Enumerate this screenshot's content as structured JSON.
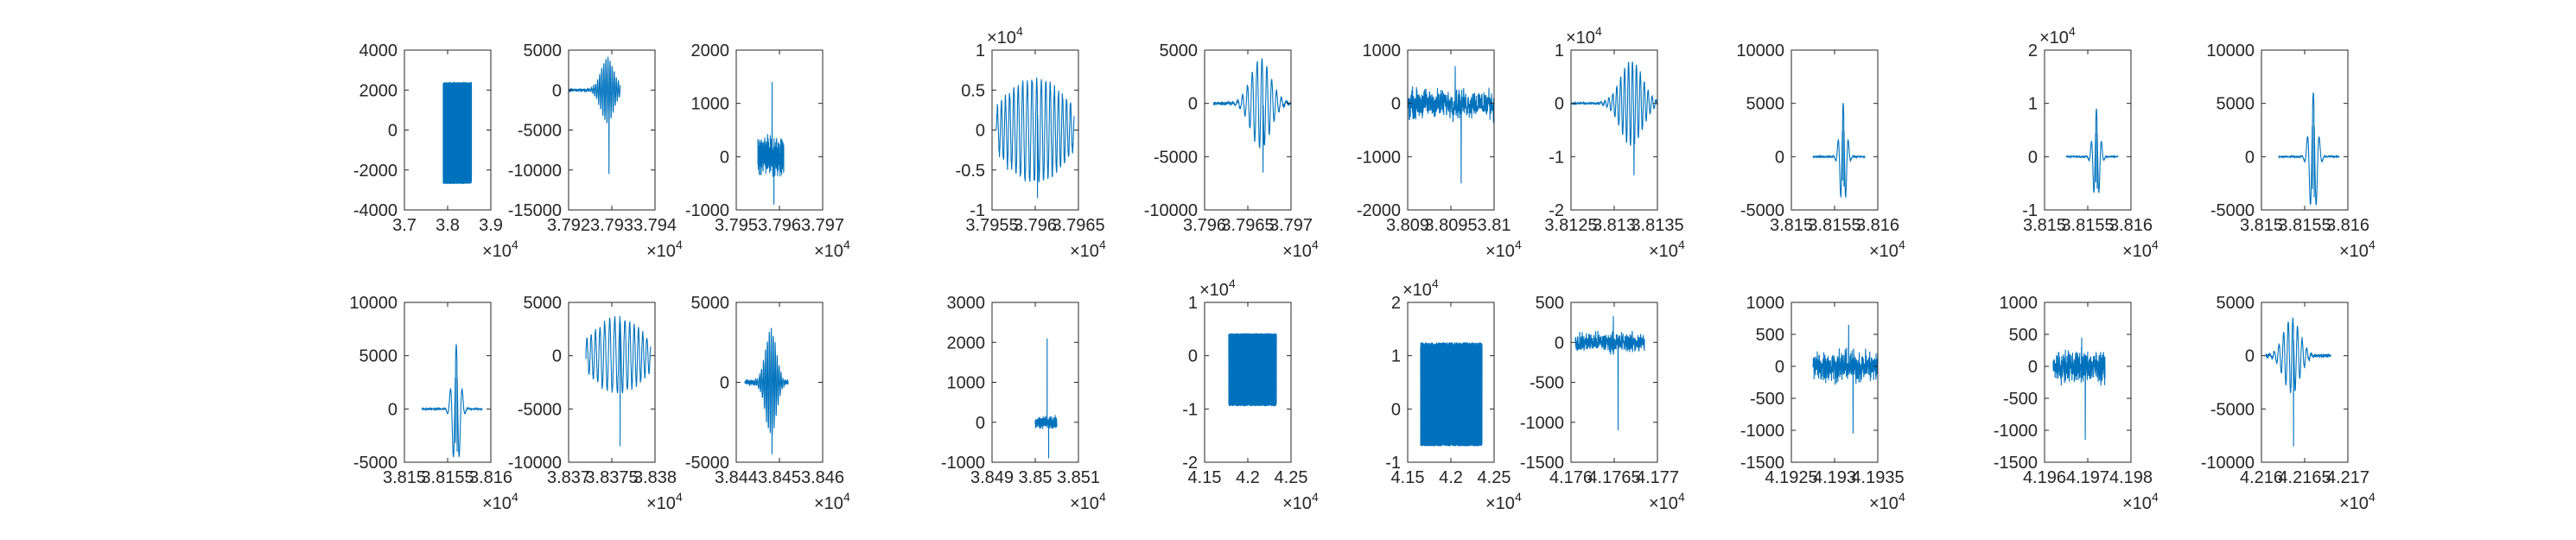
{
  "chart_data": [
    {
      "type": "line",
      "xlim": [
        37000,
        39000
      ],
      "ylim": [
        -4000,
        4000
      ],
      "xticks": [
        {
          "v": 37000,
          "t": "3.7"
        },
        {
          "v": 38000,
          "t": "3.8"
        },
        {
          "v": 39000,
          "t": "3.9"
        }
      ],
      "yticks": [
        {
          "v": -4000,
          "t": "-4000"
        },
        {
          "v": -2000,
          "t": "-2000"
        },
        {
          "v": 0,
          "t": "0"
        },
        {
          "v": 2000,
          "t": "2000"
        },
        {
          "v": 4000,
          "t": "4000"
        }
      ],
      "x_exponent": "4",
      "y_exponent": "",
      "signal": {
        "kind": "block",
        "x0": 37900,
        "x1": 38550,
        "amp": 2400,
        "low": -2700
      }
    },
    {
      "type": "line",
      "xlim": [
        37920,
        37940
      ],
      "ylim": [
        -15000,
        5000
      ],
      "xticks": [
        {
          "v": 37920,
          "t": "3.792"
        },
        {
          "v": 37930,
          "t": "3.793"
        },
        {
          "v": 37940,
          "t": "3.794"
        }
      ],
      "yticks": [
        {
          "v": -15000,
          "t": "-15000"
        },
        {
          "v": -10000,
          "t": "-10000"
        },
        {
          "v": -5000,
          "t": "-5000"
        },
        {
          "v": 0,
          "t": "0"
        },
        {
          "v": 5000,
          "t": "5000"
        }
      ],
      "x_exponent": "4",
      "y_exponent": "",
      "signal": {
        "kind": "burst",
        "x0": 37920,
        "x1": 37932,
        "peakX": 37929,
        "amp": 4000,
        "minV": -10500,
        "noise": 300,
        "osc": 25
      }
    },
    {
      "type": "line",
      "xlim": [
        37950,
        37970
      ],
      "ylim": [
        -1000,
        2000
      ],
      "xticks": [
        {
          "v": 37950,
          "t": "3.795"
        },
        {
          "v": 37960,
          "t": "3.796"
        },
        {
          "v": 37970,
          "t": "3.797"
        }
      ],
      "yticks": [
        {
          "v": -1000,
          "t": "-1000"
        },
        {
          "v": 0,
          "t": "0"
        },
        {
          "v": 1000,
          "t": "1000"
        },
        {
          "v": 2000,
          "t": "2000"
        }
      ],
      "x_exponent": "4",
      "y_exponent": "",
      "signal": {
        "kind": "noisy",
        "x0": 37955,
        "x1": 37961,
        "amp": 500,
        "spikeMax": 1400,
        "spikeMin": -900
      }
    },
    {
      "type": "line",
      "xlim": [
        37955,
        37965
      ],
      "ylim": [
        -10000,
        10000
      ],
      "xticks": [
        {
          "v": 37955,
          "t": "3.7955"
        },
        {
          "v": 37960,
          "t": "3.796"
        },
        {
          "v": 37965,
          "t": "3.7965"
        }
      ],
      "yticks": [
        {
          "v": -10000,
          "t": "-1"
        },
        {
          "v": -5000,
          "t": "-0.5"
        },
        {
          "v": 0,
          "t": "0"
        },
        {
          "v": 5000,
          "t": "0.5"
        },
        {
          "v": 10000,
          "t": "1"
        }
      ],
      "x_exponent": "4",
      "y_exponent": "4",
      "signal": {
        "kind": "wavy",
        "x0": 37955.5,
        "x1": 37964.5,
        "amp": 6500,
        "minV": -8500,
        "osc": 18
      }
    },
    {
      "type": "line",
      "xlim": [
        37960,
        37970
      ],
      "ylim": [
        -10000,
        5000
      ],
      "xticks": [
        {
          "v": 37960,
          "t": "3.796"
        },
        {
          "v": 37965,
          "t": "3.7965"
        },
        {
          "v": 37970,
          "t": "3.797"
        }
      ],
      "yticks": [
        {
          "v": -10000,
          "t": "-10000"
        },
        {
          "v": -5000,
          "t": "-5000"
        },
        {
          "v": 0,
          "t": "0"
        },
        {
          "v": 5000,
          "t": "5000"
        }
      ],
      "x_exponent": "4",
      "y_exponent": "",
      "signal": {
        "kind": "burst",
        "x0": 37961,
        "x1": 37970,
        "peakX": 37966.5,
        "amp": 4200,
        "minV": -6500,
        "noise": 250,
        "osc": 16
      }
    },
    {
      "type": "line",
      "xlim": [
        38090,
        38100
      ],
      "ylim": [
        -2000,
        1000
      ],
      "xticks": [
        {
          "v": 38090,
          "t": "3.809"
        },
        {
          "v": 38095,
          "t": "3.8095"
        },
        {
          "v": 38100,
          "t": "3.81"
        }
      ],
      "yticks": [
        {
          "v": -2000,
          "t": "-2000"
        },
        {
          "v": -1000,
          "t": "-1000"
        },
        {
          "v": 0,
          "t": "0"
        },
        {
          "v": 1000,
          "t": "1000"
        }
      ],
      "x_exponent": "4",
      "y_exponent": "",
      "signal": {
        "kind": "noisy",
        "x0": 38090,
        "x1": 38100,
        "amp": 400,
        "spikeMax": 700,
        "spikeMin": -1500
      }
    },
    {
      "type": "line",
      "xlim": [
        38125,
        38135
      ],
      "ylim": [
        -20000,
        10000
      ],
      "xticks": [
        {
          "v": 38125,
          "t": "3.8125"
        },
        {
          "v": 38130,
          "t": "3.813"
        },
        {
          "v": 38135,
          "t": "3.8135"
        }
      ],
      "yticks": [
        {
          "v": -20000,
          "t": "-2"
        },
        {
          "v": -10000,
          "t": "-1"
        },
        {
          "v": 0,
          "t": "0"
        },
        {
          "v": 10000,
          "t": "1"
        }
      ],
      "x_exponent": "4",
      "y_exponent": "4",
      "signal": {
        "kind": "burst",
        "x0": 38125,
        "x1": 38135,
        "peakX": 38132,
        "amp": 8000,
        "minV": -13500,
        "noise": 300,
        "osc": 22
      }
    },
    {
      "type": "line",
      "xlim": [
        38150,
        38160
      ],
      "ylim": [
        -5000,
        10000
      ],
      "xticks": [
        {
          "v": 38150,
          "t": "3.815"
        },
        {
          "v": 38155,
          "t": "3.8155"
        },
        {
          "v": 38160,
          "t": "3.816"
        }
      ],
      "yticks": [
        {
          "v": -5000,
          "t": "-5000"
        },
        {
          "v": 0,
          "t": "0"
        },
        {
          "v": 5000,
          "t": "5000"
        },
        {
          "v": 10000,
          "t": "10000"
        }
      ],
      "x_exponent": "4",
      "y_exponent": "",
      "signal": {
        "kind": "ricker",
        "x0": 38152.5,
        "x1": 38158.5,
        "peakX": 38156,
        "amp": 5000,
        "minV": -2800,
        "noise": 80,
        "osc": 10
      }
    },
    {
      "type": "line",
      "xlim": [
        38150,
        38160
      ],
      "ylim": [
        -10000,
        20000
      ],
      "xticks": [
        {
          "v": 38150,
          "t": "3.815"
        },
        {
          "v": 38155,
          "t": "3.8155"
        },
        {
          "v": 38160,
          "t": "3.816"
        }
      ],
      "yticks": [
        {
          "v": -10000,
          "t": "-1"
        },
        {
          "v": 0,
          "t": "0"
        },
        {
          "v": 10000,
          "t": "1"
        },
        {
          "v": 20000,
          "t": "2"
        }
      ],
      "x_exponent": "4",
      "y_exponent": "4",
      "signal": {
        "kind": "ricker",
        "x0": 38152.5,
        "x1": 38158.5,
        "peakX": 38156,
        "amp": 9000,
        "minV": -6000,
        "noise": 150,
        "osc": 10
      }
    },
    {
      "type": "line",
      "xlim": [
        38150,
        38160
      ],
      "ylim": [
        -5000,
        10000
      ],
      "xticks": [
        {
          "v": 38150,
          "t": "3.815"
        },
        {
          "v": 38155,
          "t": "3.8155"
        },
        {
          "v": 38160,
          "t": "3.816"
        }
      ],
      "yticks": [
        {
          "v": -5000,
          "t": "-5000"
        },
        {
          "v": 0,
          "t": "0"
        },
        {
          "v": 5000,
          "t": "5000"
        },
        {
          "v": 10000,
          "t": "10000"
        }
      ],
      "x_exponent": "4",
      "y_exponent": "",
      "signal": {
        "kind": "ricker",
        "x0": 38152,
        "x1": 38159,
        "peakX": 38156,
        "amp": 6000,
        "minV": -3800,
        "noise": 90,
        "osc": 10
      }
    },
    {
      "type": "line",
      "xlim": [
        38150,
        38160
      ],
      "ylim": [
        -5000,
        10000
      ],
      "xticks": [
        {
          "v": 38150,
          "t": "3.815"
        },
        {
          "v": 38155,
          "t": "3.8155"
        },
        {
          "v": 38160,
          "t": "3.816"
        }
      ],
      "yticks": [
        {
          "v": -5000,
          "t": "-5000"
        },
        {
          "v": 0,
          "t": "0"
        },
        {
          "v": 5000,
          "t": "5000"
        },
        {
          "v": 10000,
          "t": "10000"
        }
      ],
      "x_exponent": "4",
      "y_exponent": "",
      "signal": {
        "kind": "ricker",
        "x0": 38152,
        "x1": 38159,
        "peakX": 38156,
        "amp": 6000,
        "minV": -4000,
        "noise": 90,
        "osc": 10
      }
    },
    {
      "type": "line",
      "xlim": [
        38370,
        38380
      ],
      "ylim": [
        -10000,
        5000
      ],
      "xticks": [
        {
          "v": 38370,
          "t": "3.837"
        },
        {
          "v": 38375,
          "t": "3.8375"
        },
        {
          "v": 38380,
          "t": "3.838"
        }
      ],
      "yticks": [
        {
          "v": -10000,
          "t": "-10000"
        },
        {
          "v": -5000,
          "t": "-5000"
        },
        {
          "v": 0,
          "t": "0"
        },
        {
          "v": 5000,
          "t": "5000"
        }
      ],
      "x_exponent": "4",
      "y_exponent": "",
      "signal": {
        "kind": "wavy",
        "x0": 38372,
        "x1": 38379.5,
        "amp": 3500,
        "minV": -8500,
        "osc": 14
      }
    },
    {
      "type": "line",
      "xlim": [
        38440,
        38460
      ],
      "ylim": [
        -5000,
        5000
      ],
      "xticks": [
        {
          "v": 38440,
          "t": "3.844"
        },
        {
          "v": 38450,
          "t": "3.845"
        },
        {
          "v": 38460,
          "t": "3.846"
        }
      ],
      "yticks": [
        {
          "v": -5000,
          "t": "-5000"
        },
        {
          "v": 0,
          "t": "0"
        },
        {
          "v": 5000,
          "t": "5000"
        }
      ],
      "x_exponent": "4",
      "y_exponent": "",
      "signal": {
        "kind": "burst",
        "x0": 38442,
        "x1": 38452,
        "peakX": 38448,
        "amp": 3300,
        "minV": -4500,
        "noise": 300,
        "osc": 22
      }
    },
    {
      "type": "line",
      "xlim": [
        38490,
        38510
      ],
      "ylim": [
        -1000,
        3000
      ],
      "xticks": [
        {
          "v": 38490,
          "t": "3.849"
        },
        {
          "v": 38500,
          "t": "3.85"
        },
        {
          "v": 38510,
          "t": "3.851"
        }
      ],
      "yticks": [
        {
          "v": -1000,
          "t": "-1000"
        },
        {
          "v": 0,
          "t": "0"
        },
        {
          "v": 1000,
          "t": "1000"
        },
        {
          "v": 2000,
          "t": "2000"
        },
        {
          "v": 3000,
          "t": "3000"
        }
      ],
      "x_exponent": "4",
      "y_exponent": "",
      "signal": {
        "kind": "noisy",
        "x0": 38500,
        "x1": 38505,
        "amp": 200,
        "spikeMax": 2100,
        "spikeMin": -900
      }
    },
    {
      "type": "line",
      "xlim": [
        41500,
        42500
      ],
      "ylim": [
        -20000,
        10000
      ],
      "xticks": [
        {
          "v": 41500,
          "t": "4.15"
        },
        {
          "v": 42000,
          "t": "4.2"
        },
        {
          "v": 42500,
          "t": "4.25"
        }
      ],
      "yticks": [
        {
          "v": -20000,
          "t": "-2"
        },
        {
          "v": -10000,
          "t": "-1"
        },
        {
          "v": 0,
          "t": "0"
        },
        {
          "v": 10000,
          "t": "1"
        }
      ],
      "x_exponent": "4",
      "y_exponent": "4",
      "signal": {
        "kind": "block",
        "x0": 41780,
        "x1": 42330,
        "amp": 4200,
        "low": -9500
      }
    },
    {
      "type": "line",
      "xlim": [
        41500,
        42500
      ],
      "ylim": [
        -10000,
        20000
      ],
      "xticks": [
        {
          "v": 41500,
          "t": "4.15"
        },
        {
          "v": 42000,
          "t": "4.2"
        },
        {
          "v": 42500,
          "t": "4.25"
        }
      ],
      "yticks": [
        {
          "v": -10000,
          "t": "-1"
        },
        {
          "v": 0,
          "t": "0"
        },
        {
          "v": 10000,
          "t": "1"
        },
        {
          "v": 20000,
          "t": "2"
        }
      ],
      "x_exponent": "4",
      "y_exponent": "4",
      "signal": {
        "kind": "block",
        "x0": 41650,
        "x1": 42360,
        "amp": 12500,
        "low": -7000
      }
    },
    {
      "type": "line",
      "xlim": [
        41760,
        41770
      ],
      "ylim": [
        -1500,
        500
      ],
      "xticks": [
        {
          "v": 41760,
          "t": "4.176"
        },
        {
          "v": 41765,
          "t": "4.1765"
        },
        {
          "v": 41770,
          "t": "4.177"
        }
      ],
      "yticks": [
        {
          "v": -1500,
          "t": "-1500"
        },
        {
          "v": -1000,
          "t": "-1000"
        },
        {
          "v": -500,
          "t": "-500"
        },
        {
          "v": 0,
          "t": "0"
        },
        {
          "v": 500,
          "t": "500"
        }
      ],
      "x_exponent": "4",
      "y_exponent": "",
      "signal": {
        "kind": "noisy",
        "x0": 41760.5,
        "x1": 41768.5,
        "amp": 180,
        "spikeMax": 330,
        "spikeMin": -1100
      }
    },
    {
      "type": "line",
      "xlim": [
        41925,
        41935
      ],
      "ylim": [
        -1500,
        1000
      ],
      "xticks": [
        {
          "v": 41925,
          "t": "4.1925"
        },
        {
          "v": 41930,
          "t": "4.193"
        },
        {
          "v": 41935,
          "t": "4.1935"
        }
      ],
      "yticks": [
        {
          "v": -1500,
          "t": "-1500"
        },
        {
          "v": -1000,
          "t": "-1000"
        },
        {
          "v": -500,
          "t": "-500"
        },
        {
          "v": 0,
          "t": "0"
        },
        {
          "v": 500,
          "t": "500"
        },
        {
          "v": 1000,
          "t": "1000"
        }
      ],
      "x_exponent": "4",
      "y_exponent": "",
      "signal": {
        "kind": "noisy",
        "x0": 41927.5,
        "x1": 41935,
        "amp": 350,
        "spikeMax": 650,
        "spikeMin": -1050
      }
    },
    {
      "type": "line",
      "xlim": [
        41960,
        41980
      ],
      "ylim": [
        -1500,
        1000
      ],
      "xticks": [
        {
          "v": 41960,
          "t": "4.196"
        },
        {
          "v": 41970,
          "t": "4.197"
        },
        {
          "v": 41980,
          "t": "4.198"
        }
      ],
      "yticks": [
        {
          "v": -1500,
          "t": "-1500"
        },
        {
          "v": -1000,
          "t": "-1000"
        },
        {
          "v": -500,
          "t": "-500"
        },
        {
          "v": 0,
          "t": "0"
        },
        {
          "v": 500,
          "t": "500"
        },
        {
          "v": 1000,
          "t": "1000"
        }
      ],
      "x_exponent": "4",
      "y_exponent": "",
      "signal": {
        "kind": "noisy",
        "x0": 41962,
        "x1": 41974,
        "amp": 350,
        "spikeMax": 450,
        "spikeMin": -1150
      }
    },
    {
      "type": "line",
      "xlim": [
        42160,
        42170
      ],
      "ylim": [
        -10000,
        5000
      ],
      "xticks": [
        {
          "v": 42160,
          "t": "4.216"
        },
        {
          "v": 42165,
          "t": "4.2165"
        },
        {
          "v": 42170,
          "t": "4.217"
        }
      ],
      "yticks": [
        {
          "v": -10000,
          "t": "-10000"
        },
        {
          "v": -5000,
          "t": "-5000"
        },
        {
          "v": 0,
          "t": "0"
        },
        {
          "v": 5000,
          "t": "5000"
        }
      ],
      "x_exponent": "4",
      "y_exponent": "",
      "signal": {
        "kind": "burst",
        "x0": 42160.5,
        "x1": 42168,
        "peakX": 42163.5,
        "amp": 3500,
        "minV": -8500,
        "noise": 250,
        "osc": 14
      }
    }
  ],
  "colors": {
    "line": "#0072BD",
    "axis": "#262626",
    "background": "#ffffff"
  },
  "exponent_base": "×10"
}
